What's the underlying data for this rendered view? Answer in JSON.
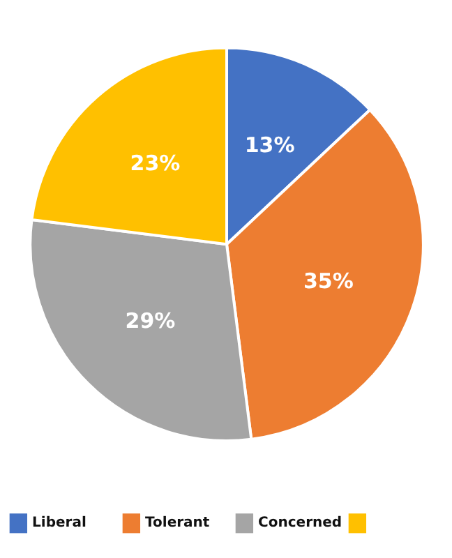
{
  "chart_data": {
    "type": "pie",
    "categories": [
      "Liberal",
      "Tolerant",
      "Concerned",
      null
    ],
    "values": [
      13,
      35,
      29,
      23
    ],
    "colors": [
      "#4472c4",
      "#ed7d31",
      "#a5a5a5",
      "#ffc000"
    ],
    "value_labels": [
      "13%",
      "35%",
      "29%",
      "23%"
    ],
    "legend": "bottom"
  }
}
